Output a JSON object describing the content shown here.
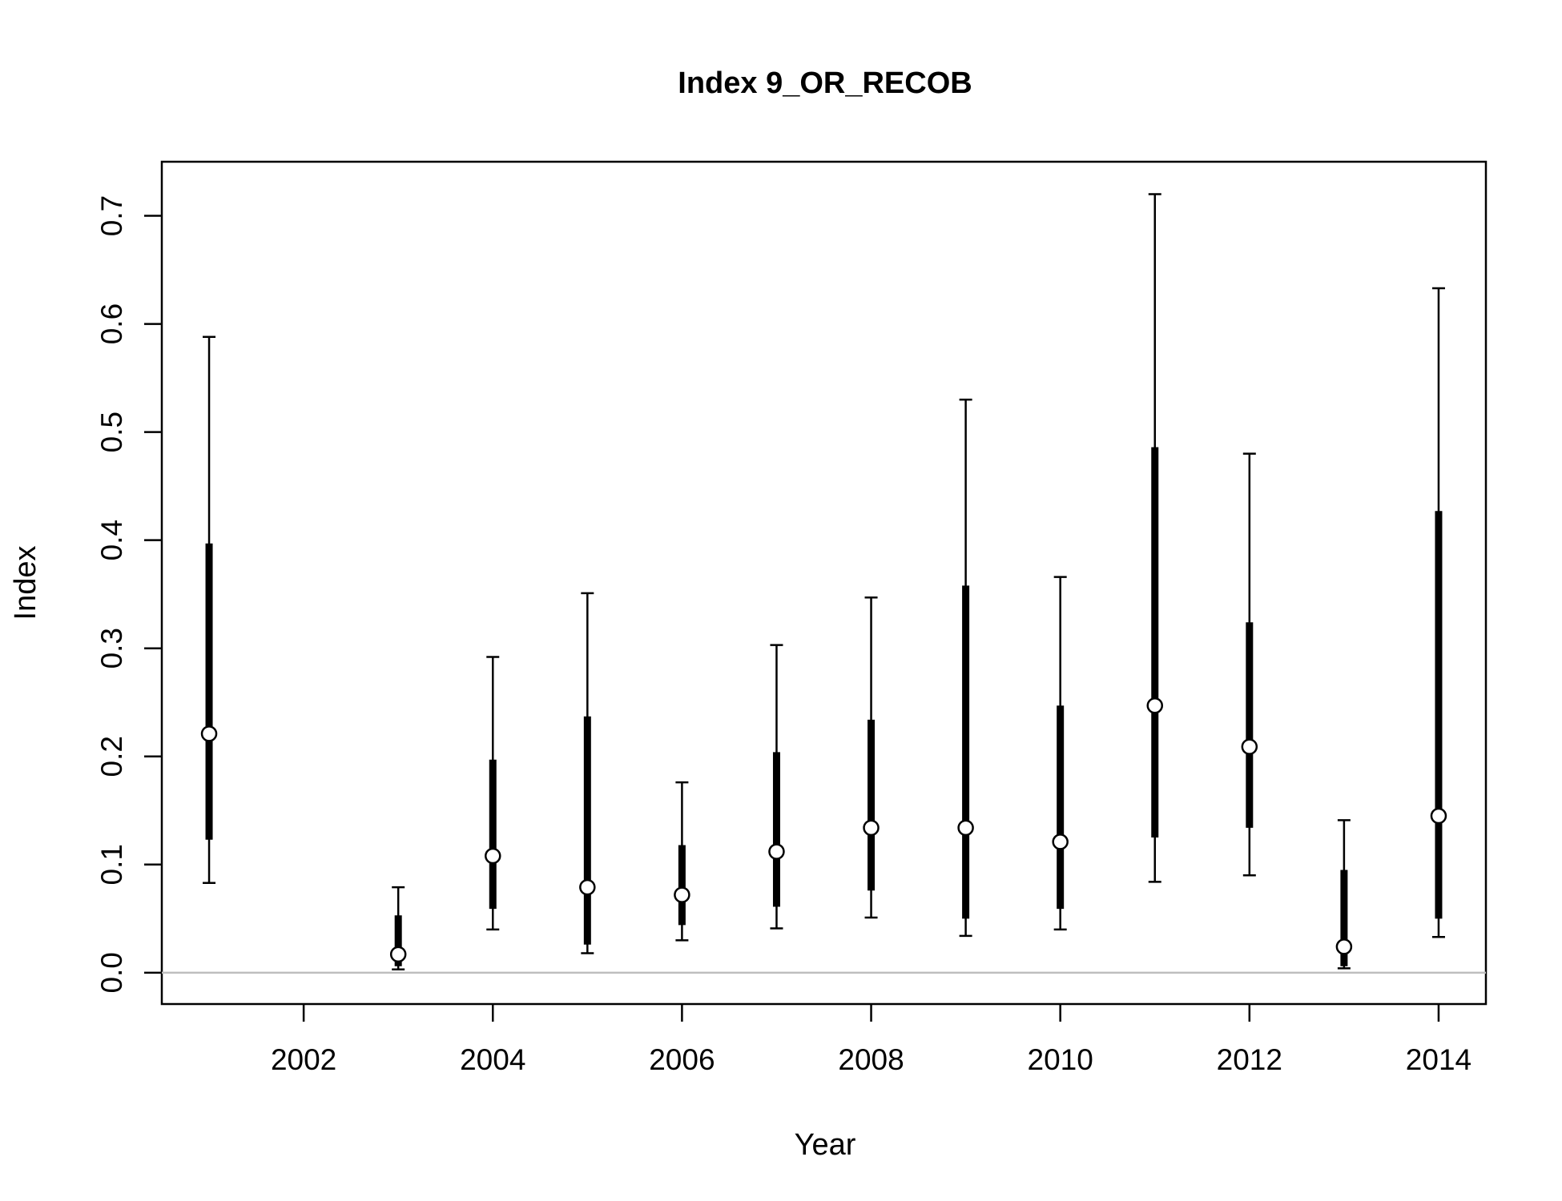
{
  "chart_data": {
    "type": "scatter",
    "title": "Index 9_OR_RECOB",
    "xlabel": "Year",
    "ylabel": "Index",
    "xlim": [
      2000.5,
      2014.5
    ],
    "ylim": [
      -0.029,
      0.75
    ],
    "x_ticks": [
      2002,
      2004,
      2006,
      2008,
      2010,
      2012,
      2014
    ],
    "y_ticks": [
      0.0,
      0.1,
      0.2,
      0.3,
      0.4,
      0.5,
      0.6,
      0.7
    ],
    "x_tick_labels": [
      "2002",
      "2004",
      "2006",
      "2008",
      "2010",
      "2012",
      "2014"
    ],
    "y_tick_labels": [
      "0.0",
      "0.1",
      "0.2",
      "0.3",
      "0.4",
      "0.5",
      "0.6",
      "0.7"
    ],
    "reference_line_y": 0,
    "grid": false,
    "colors": {
      "points_fill": "#ffffff",
      "points_stroke": "#000000",
      "intervals": "#000000",
      "reference_line": "#bebebe"
    },
    "points": [
      {
        "year": 2001,
        "value": 0.221,
        "inner_low": 0.123,
        "inner_high": 0.397,
        "outer_low": 0.083,
        "outer_high": 0.588
      },
      {
        "year": 2003,
        "value": 0.017,
        "inner_low": 0.006,
        "inner_high": 0.053,
        "outer_low": 0.003,
        "outer_high": 0.079
      },
      {
        "year": 2004,
        "value": 0.108,
        "inner_low": 0.059,
        "inner_high": 0.197,
        "outer_low": 0.04,
        "outer_high": 0.292
      },
      {
        "year": 2005,
        "value": 0.079,
        "inner_low": 0.026,
        "inner_high": 0.237,
        "outer_low": 0.018,
        "outer_high": 0.351
      },
      {
        "year": 2006,
        "value": 0.072,
        "inner_low": 0.044,
        "inner_high": 0.118,
        "outer_low": 0.03,
        "outer_high": 0.176
      },
      {
        "year": 2007,
        "value": 0.112,
        "inner_low": 0.061,
        "inner_high": 0.204,
        "outer_low": 0.041,
        "outer_high": 0.303
      },
      {
        "year": 2008,
        "value": 0.134,
        "inner_low": 0.076,
        "inner_high": 0.234,
        "outer_low": 0.051,
        "outer_high": 0.347
      },
      {
        "year": 2009,
        "value": 0.134,
        "inner_low": 0.05,
        "inner_high": 0.358,
        "outer_low": 0.034,
        "outer_high": 0.53
      },
      {
        "year": 2010,
        "value": 0.121,
        "inner_low": 0.059,
        "inner_high": 0.247,
        "outer_low": 0.04,
        "outer_high": 0.366
      },
      {
        "year": 2011,
        "value": 0.247,
        "inner_low": 0.125,
        "inner_high": 0.486,
        "outer_low": 0.084,
        "outer_high": 0.72
      },
      {
        "year": 2012,
        "value": 0.209,
        "inner_low": 0.134,
        "inner_high": 0.324,
        "outer_low": 0.09,
        "outer_high": 0.48
      },
      {
        "year": 2013,
        "value": 0.024,
        "inner_low": 0.006,
        "inner_high": 0.095,
        "outer_low": 0.004,
        "outer_high": 0.141
      },
      {
        "year": 2014,
        "value": 0.145,
        "inner_low": 0.05,
        "inner_high": 0.427,
        "outer_low": 0.033,
        "outer_high": 0.633
      }
    ]
  }
}
